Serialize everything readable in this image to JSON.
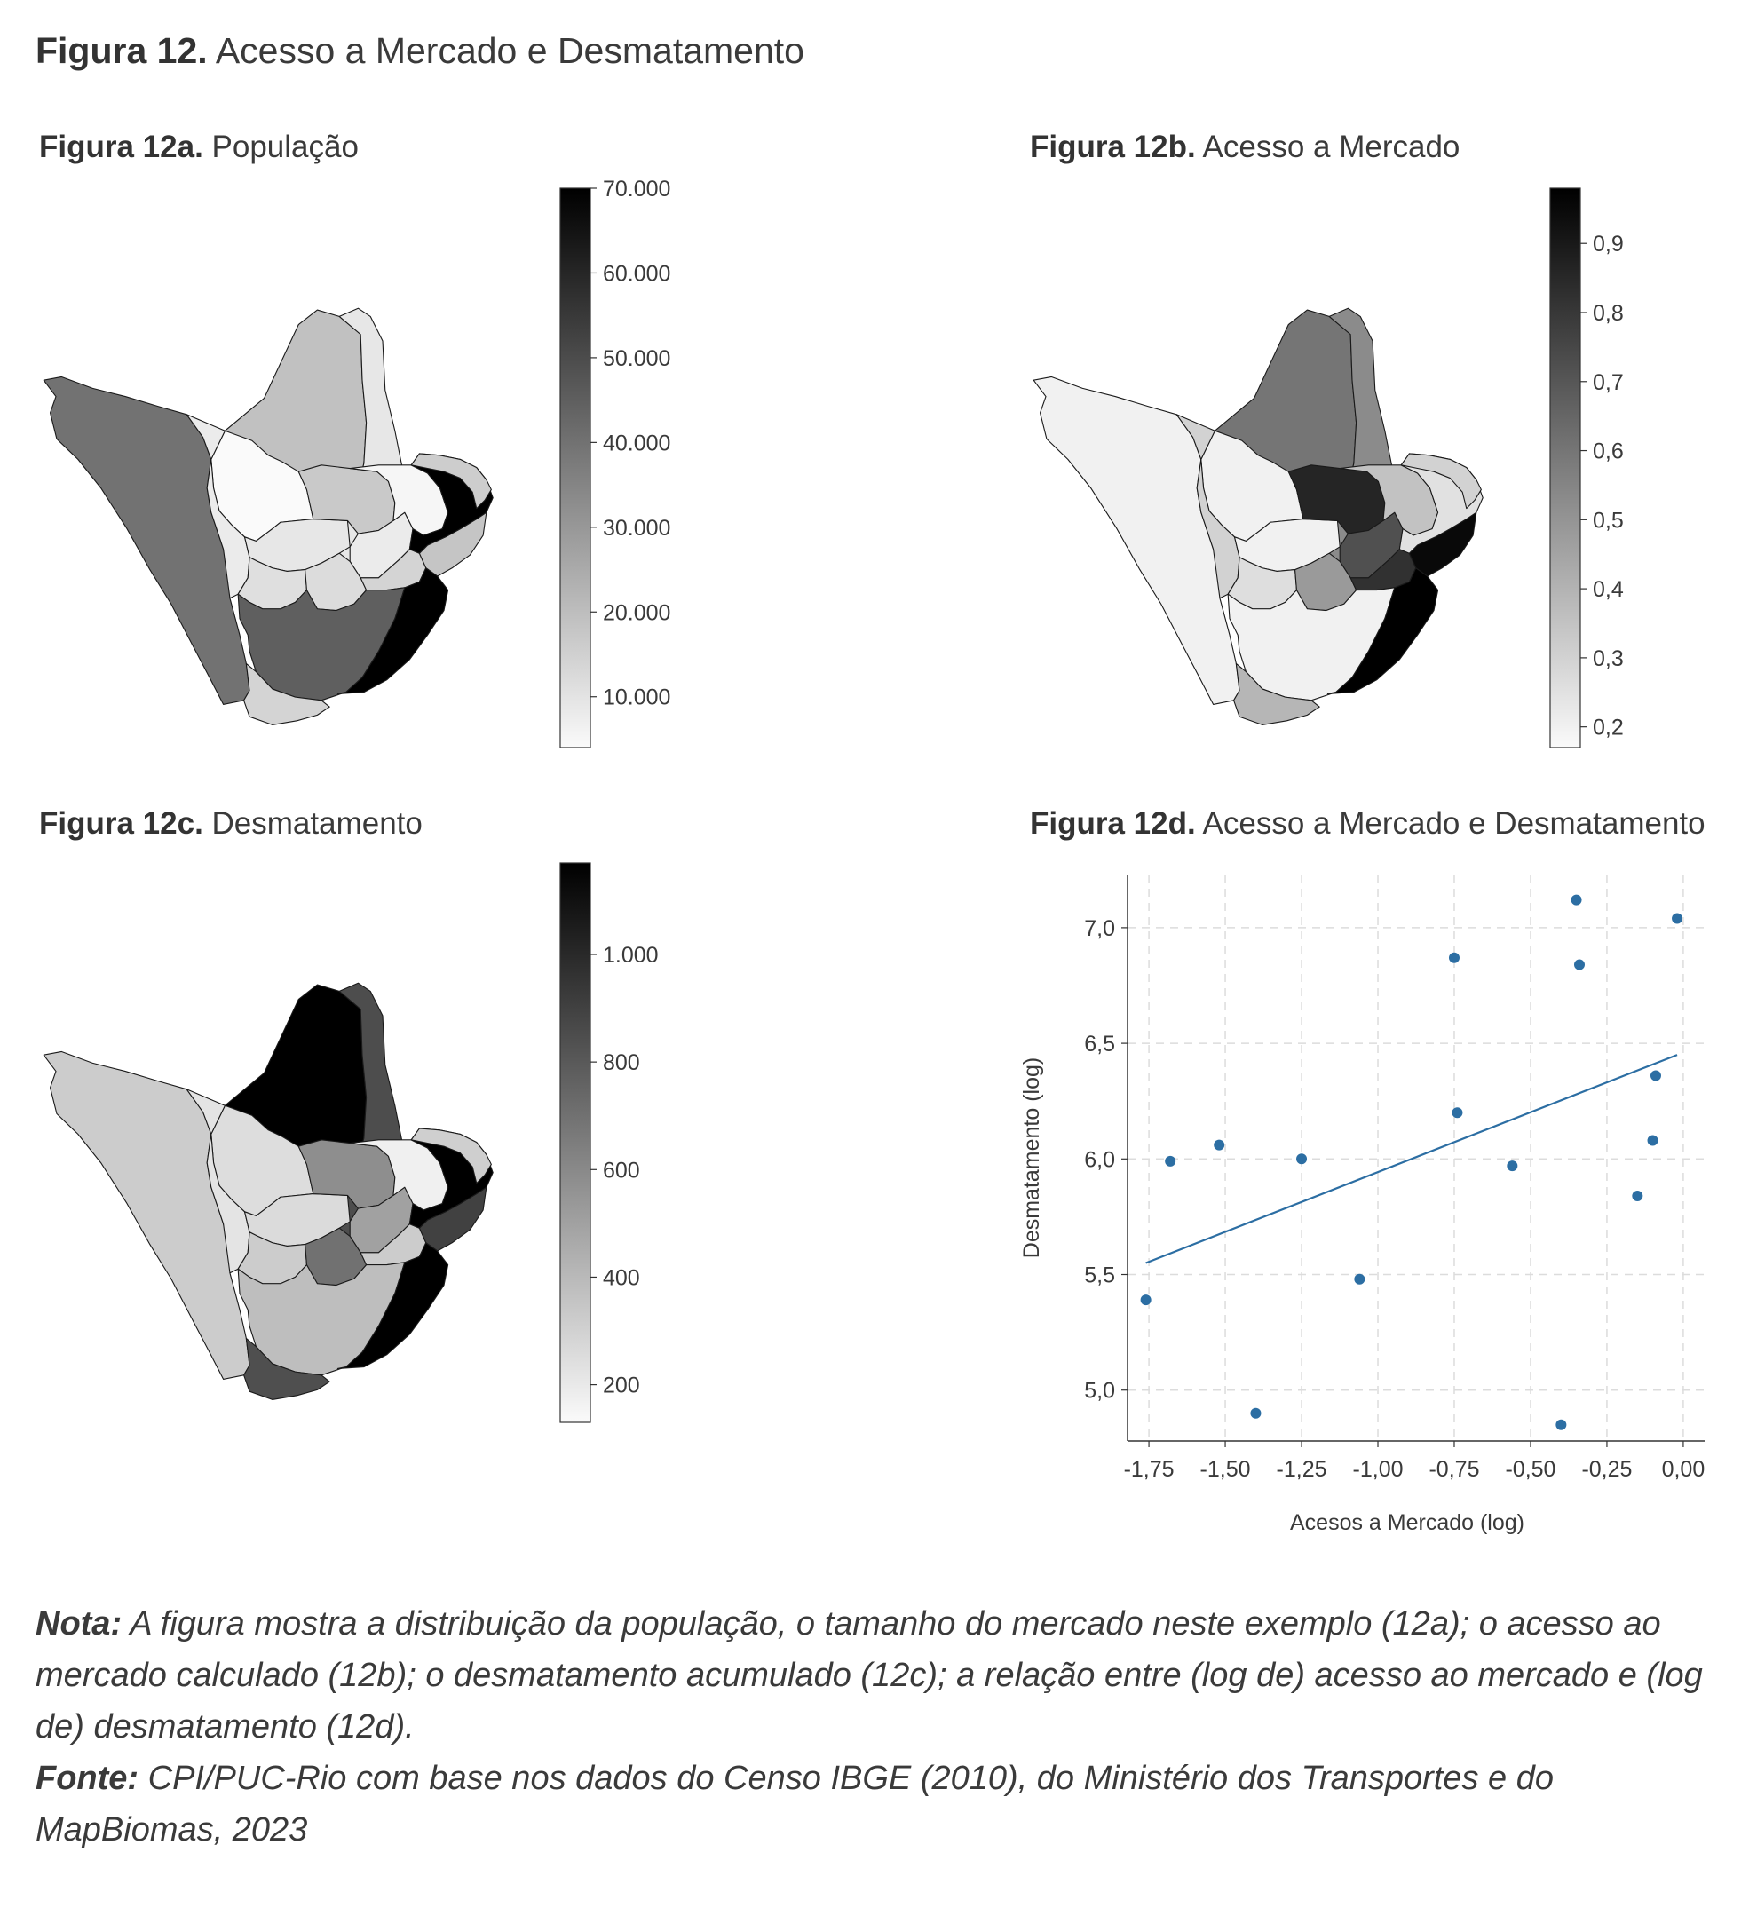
{
  "figure": {
    "number": "Figura 12.",
    "title": "Acesso a Mercado e Desmatamento"
  },
  "panels": {
    "a": {
      "label": "Figura 12a.",
      "title": "População",
      "colorbar": {
        "min": 4000,
        "max": 70000,
        "ticks": [
          10000,
          20000,
          30000,
          40000,
          50000,
          60000,
          70000
        ],
        "tick_labels": [
          "10.000",
          "20.000",
          "30.000",
          "40.000",
          "50.000",
          "60.000",
          "70.000"
        ]
      }
    },
    "b": {
      "label": "Figura 12b.",
      "title": "Acesso a Mercado",
      "colorbar": {
        "min": 0.17,
        "max": 0.98,
        "ticks": [
          0.2,
          0.3,
          0.4,
          0.5,
          0.6,
          0.7,
          0.8,
          0.9
        ],
        "tick_labels": [
          "0,2",
          "0,3",
          "0,4",
          "0,5",
          "0,6",
          "0,7",
          "0,8",
          "0,9"
        ]
      }
    },
    "c": {
      "label": "Figura 12c.",
      "title": "Desmatamento",
      "colorbar": {
        "min": 130,
        "max": 1170,
        "ticks": [
          200,
          400,
          600,
          800,
          1000
        ],
        "tick_labels": [
          "200",
          "400",
          "600",
          "800",
          "1.000"
        ]
      }
    },
    "d": {
      "label": "Figura 12d.",
      "title": "Acesso a Mercado e Desmatamento"
    }
  },
  "maps": {
    "a_values": [
      19000,
      9000,
      40000,
      3000,
      8000,
      9000,
      11000,
      17000,
      8000,
      5000,
      12000,
      14000,
      18000,
      70000,
      45000,
      70000,
      14000,
      16000
    ],
    "b_values": [
      0.6,
      0.53,
      0.2,
      0.2,
      0.3,
      0.2,
      0.26,
      0.86,
      0.72,
      0.35,
      0.48,
      0.82,
      0.95,
      0.25,
      0.2,
      0.98,
      0.39,
      0.3
    ],
    "c_values": [
      1170,
      850,
      320,
      250,
      220,
      260,
      320,
      580,
      500,
      170,
      700,
      320,
      900,
      1170,
      380,
      1170,
      840,
      310
    ]
  },
  "chart_data": {
    "type": "scatter",
    "xlabel": "Acesos a Mercado (log)",
    "ylabel": "Desmatamento (log)",
    "xlim": [
      -1.82,
      0.07
    ],
    "ylim": [
      4.78,
      7.23
    ],
    "xticks": [
      -1.75,
      -1.5,
      -1.25,
      -1.0,
      -0.75,
      -0.5,
      -0.25,
      0.0
    ],
    "xtick_labels": [
      "-1,75",
      "-1,50",
      "-1,25",
      "-1,00",
      "-0,75",
      "-0,50",
      "-0,25",
      "0,00"
    ],
    "yticks": [
      5.0,
      5.5,
      6.0,
      6.5,
      7.0
    ],
    "ytick_labels": [
      "5,0",
      "5,5",
      "6,0",
      "6,5",
      "7,0"
    ],
    "grid": true,
    "points": [
      {
        "x": -1.76,
        "y": 5.39
      },
      {
        "x": -1.68,
        "y": 5.99
      },
      {
        "x": -1.52,
        "y": 6.06
      },
      {
        "x": -1.4,
        "y": 4.9
      },
      {
        "x": -1.25,
        "y": 6.0
      },
      {
        "x": -1.06,
        "y": 5.48
      },
      {
        "x": -0.75,
        "y": 6.87
      },
      {
        "x": -0.74,
        "y": 6.2
      },
      {
        "x": -0.56,
        "y": 5.97
      },
      {
        "x": -0.4,
        "y": 4.85
      },
      {
        "x": -0.35,
        "y": 7.12
      },
      {
        "x": -0.34,
        "y": 6.84
      },
      {
        "x": -0.15,
        "y": 5.84
      },
      {
        "x": -0.1,
        "y": 6.08
      },
      {
        "x": -0.09,
        "y": 6.36
      },
      {
        "x": -0.02,
        "y": 7.04
      }
    ],
    "fit_line": [
      {
        "x": -1.76,
        "y": 5.55
      },
      {
        "x": -0.02,
        "y": 6.45
      }
    ],
    "point_color": "#2c6ea3",
    "line_color": "#2c6ea3"
  },
  "notes": {
    "nota_label": "Nota:",
    "nota_text": " A figura mostra a distribuição da população, o tamanho do mercado neste exemplo (12a); o acesso ao mercado calculado (12b); o desmatamento acumulado (12c); a relação entre (log de) acesso ao mercado e (log de) desmatamento (12d).",
    "fonte_label": "Fonte:",
    "fonte_text": " CPI/PUC-Rio com base nos dados do Censo IBGE (2010), do Ministério dos Transportes e do MapBiomas, 2023"
  }
}
